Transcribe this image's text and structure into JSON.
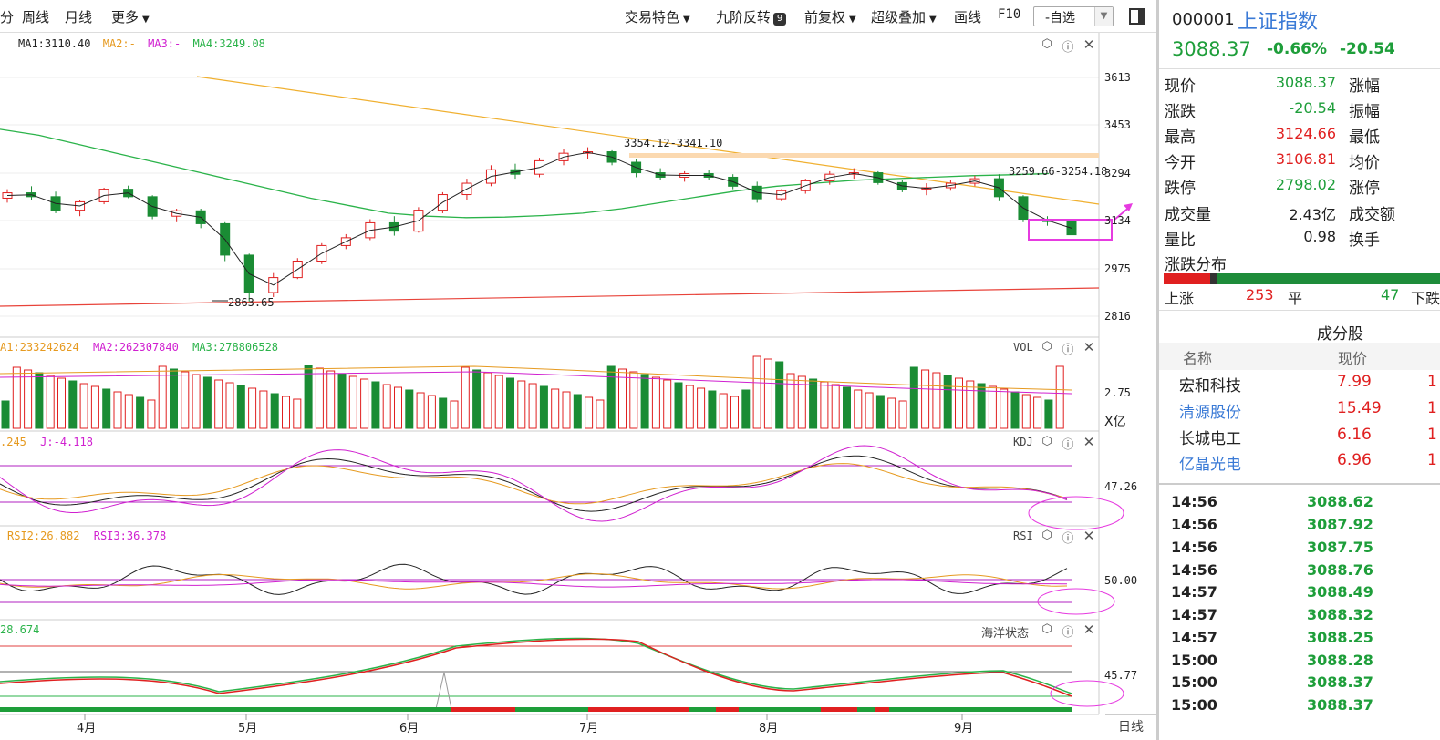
{
  "toolbar": {
    "items": [
      "分",
      "周线",
      "月线",
      "更多"
    ],
    "right_items": [
      "交易特色",
      "九阶反转",
      "前复权",
      "超级叠加",
      "画线",
      "F10"
    ],
    "nine_badge": "9",
    "self_select": "-自选"
  },
  "main_legend": {
    "ma1": "MA1:3110.40",
    "ma2": "MA2:-",
    "ma3": "MA3:-",
    "ma4": "MA4:3249.08"
  },
  "price_axis": [
    "3613",
    "3453",
    "3294",
    "3134",
    "2975",
    "2816"
  ],
  "annotations": {
    "hi1": "3354.12-3341.10",
    "hi2": "3259.66-3254.18",
    "low": "2863.65"
  },
  "vol": {
    "legend": "A1:233242624",
    "ma2": "MA2:262307840",
    "ma3": "MA3:278806528",
    "name": "VOL",
    "axis": "2.75",
    "unit": "X亿"
  },
  "kdj": {
    "legend": ".245",
    "j": "J:-4.118",
    "name": "KDJ",
    "axis": "47.26"
  },
  "rsi": {
    "r2": "RSI2:26.882",
    "r3": "RSI3:36.378",
    "name": "RSI",
    "axis": "50.00"
  },
  "ocean": {
    "legend": "28.674",
    "name": "海洋状态",
    "axis": "45.77"
  },
  "months": [
    "4月",
    "5月",
    "6月",
    "7月",
    "8月",
    "9月"
  ],
  "day_line": "日线",
  "icons": {
    "settings": "hexagon-settings-icon",
    "help": "help-icon",
    "close": "close-icon"
  },
  "stock": {
    "code": "000001",
    "name": "上证指数",
    "price": "3088.37",
    "pct": "-0.66%",
    "chg": "-20.54"
  },
  "quotes": [
    {
      "k": "现价",
      "v": "3088.37",
      "c": "green",
      "k2": "涨幅"
    },
    {
      "k": "涨跌",
      "v": "-20.54",
      "c": "green",
      "k2": "振幅"
    },
    {
      "k": "最高",
      "v": "3124.66",
      "c": "red",
      "k2": "最低"
    },
    {
      "k": "今开",
      "v": "3106.81",
      "c": "red",
      "k2": "均价"
    },
    {
      "k": "跌停",
      "v": "2798.02",
      "c": "green",
      "k2": "涨停"
    },
    {
      "k": "成交量",
      "v": "2.43亿",
      "c": "dark",
      "k2": "成交额"
    },
    {
      "k": "量比",
      "v": "0.98",
      "c": "dark",
      "k2": "换手"
    }
  ],
  "dist": {
    "title": "涨跌分布",
    "up_label": "上涨",
    "up": "253",
    "flat_label": "平",
    "flat": "47",
    "down_label": "下跌"
  },
  "constituents": {
    "title": "成分股",
    "col_name": "名称",
    "col_price": "现价",
    "rows": [
      {
        "n": "宏和科技",
        "p": "7.99",
        "x": "1",
        "nc": "dark"
      },
      {
        "n": "清源股份",
        "p": "15.49",
        "x": "1",
        "nc": "blue"
      },
      {
        "n": "长城电工",
        "p": "6.16",
        "x": "1",
        "nc": "dark"
      },
      {
        "n": "亿晶光电",
        "p": "6.96",
        "x": "1",
        "nc": "blue"
      }
    ]
  },
  "ticks": [
    {
      "t": "14:56",
      "v": "3088.62"
    },
    {
      "t": "14:56",
      "v": "3087.92"
    },
    {
      "t": "14:56",
      "v": "3087.75"
    },
    {
      "t": "14:56",
      "v": "3088.76"
    },
    {
      "t": "14:57",
      "v": "3088.49"
    },
    {
      "t": "14:57",
      "v": "3088.32"
    },
    {
      "t": "14:57",
      "v": "3088.25"
    },
    {
      "t": "15:00",
      "v": "3088.28"
    },
    {
      "t": "15:00",
      "v": "3088.37"
    },
    {
      "t": "15:00",
      "v": "3088.37"
    }
  ],
  "colors": {
    "up": "#e02020",
    "down": "#1a8c34",
    "ma1": "#222222",
    "ma4": "#2bb34a",
    "trend": "#f0b030",
    "support": "#e8433a",
    "highlight": "#e63be0"
  },
  "chart_data": {
    "type": "candlestick",
    "ylim": [
      2816,
      3613
    ],
    "x_ticks": [
      "4月",
      "5月",
      "6月",
      "7月",
      "8月",
      "9月"
    ],
    "ohlc_sampled": [
      [
        3210,
        3240,
        3195,
        3228
      ],
      [
        3228,
        3250,
        3205,
        3215
      ],
      [
        3215,
        3232,
        3160,
        3170
      ],
      [
        3170,
        3205,
        3150,
        3198
      ],
      [
        3198,
        3245,
        3190,
        3240
      ],
      [
        3240,
        3252,
        3210,
        3215
      ],
      [
        3215,
        3220,
        3140,
        3150
      ],
      [
        3150,
        3175,
        3130,
        3168
      ],
      [
        3168,
        3175,
        3110,
        3125
      ],
      [
        3125,
        3130,
        3000,
        3020
      ],
      [
        3020,
        3025,
        2864,
        2895
      ],
      [
        2895,
        2960,
        2880,
        2945
      ],
      [
        2945,
        3010,
        2940,
        3000
      ],
      [
        3000,
        3060,
        2990,
        3052
      ],
      [
        3052,
        3090,
        3040,
        3078
      ],
      [
        3078,
        3140,
        3070,
        3128
      ],
      [
        3128,
        3150,
        3085,
        3100
      ],
      [
        3100,
        3180,
        3095,
        3170
      ],
      [
        3170,
        3230,
        3160,
        3222
      ],
      [
        3222,
        3275,
        3205,
        3260
      ],
      [
        3260,
        3320,
        3250,
        3305
      ],
      [
        3305,
        3325,
        3275,
        3290
      ],
      [
        3290,
        3345,
        3280,
        3335
      ],
      [
        3335,
        3375,
        3320,
        3360
      ],
      [
        3360,
        3380,
        3340,
        3365
      ],
      [
        3365,
        3370,
        3320,
        3330
      ],
      [
        3330,
        3340,
        3280,
        3295
      ],
      [
        3295,
        3310,
        3270,
        3280
      ],
      [
        3280,
        3300,
        3265,
        3292
      ],
      [
        3292,
        3305,
        3270,
        3280
      ],
      [
        3280,
        3290,
        3240,
        3250
      ],
      [
        3250,
        3265,
        3195,
        3208
      ],
      [
        3208,
        3240,
        3200,
        3235
      ],
      [
        3235,
        3275,
        3225,
        3268
      ],
      [
        3268,
        3300,
        3255,
        3290
      ],
      [
        3290,
        3310,
        3275,
        3295
      ],
      [
        3295,
        3300,
        3255,
        3262
      ],
      [
        3262,
        3270,
        3230,
        3240
      ],
      [
        3240,
        3260,
        3220,
        3245
      ],
      [
        3245,
        3270,
        3235,
        3260
      ],
      [
        3260,
        3285,
        3250,
        3275
      ],
      [
        3275,
        3290,
        3200,
        3215
      ],
      [
        3215,
        3220,
        3130,
        3140
      ],
      [
        3140,
        3150,
        3118,
        3132
      ],
      [
        3132,
        3138,
        3090,
        3088
      ]
    ],
    "ma1_last": 3110.4,
    "ma4_last": 3249.08,
    "low_mark": 2863.65
  }
}
